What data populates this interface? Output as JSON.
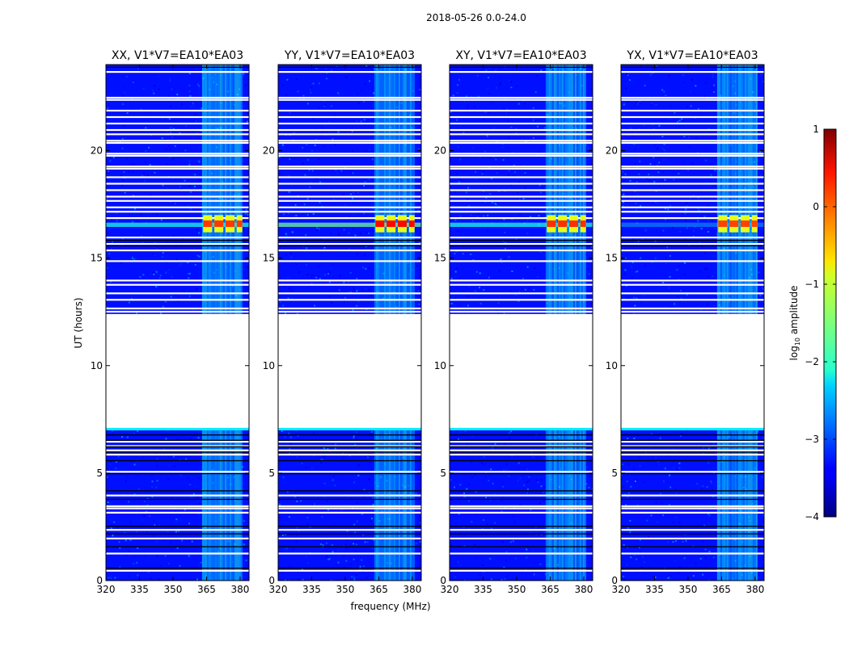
{
  "chart_data": {
    "type": "heatmap",
    "suptitle": "2018-05-26 0.0-24.0",
    "xlabel": "frequency (MHz)",
    "ylabel": "UT (hours)",
    "xlim": [
      320,
      384
    ],
    "ylim": [
      0,
      24
    ],
    "xticks": [
      "320",
      "335",
      "350",
      "365",
      "380"
    ],
    "yticks": [
      "0",
      "5",
      "10",
      "15",
      "20"
    ],
    "xtick_values": [
      320,
      335,
      350,
      365,
      380
    ],
    "ytick_values": [
      0,
      5,
      10,
      15,
      20
    ],
    "colorbar": {
      "label": "log10 amplitude",
      "label_base": "log",
      "label_sub": "10",
      "label_rest": " amplitude",
      "range": [
        -4,
        1
      ],
      "ticks": [
        "1",
        "0",
        "−1",
        "−2",
        "−3",
        "−4"
      ],
      "tick_values": [
        1,
        0,
        -1,
        -2,
        -3,
        -4
      ],
      "colormap": "jet"
    },
    "panels": [
      {
        "title": "XX, V1*V7=EA10*EA03",
        "peak_log_amplitude": 0.1
      },
      {
        "title": "YY, V1*V7=EA10*EA03",
        "peak_log_amplitude": 0.35
      },
      {
        "title": "XY, V1*V7=EA10*EA03",
        "peak_log_amplitude": 0.15
      },
      {
        "title": "YX, V1*V7=EA10*EA03",
        "peak_log_amplitude": 0.05
      }
    ],
    "features": {
      "background_log_amplitude": -3.3,
      "rfi_band_mhz": [
        363,
        381
      ],
      "rfi_log_amplitude": -2.3,
      "data_gap_ut_hours": [
        7.1,
        12.4
      ],
      "rfi_burst_ut_hours": [
        16.2,
        17.0
      ],
      "rfi_burst_broadband_log_amplitude": -2.0
    }
  }
}
